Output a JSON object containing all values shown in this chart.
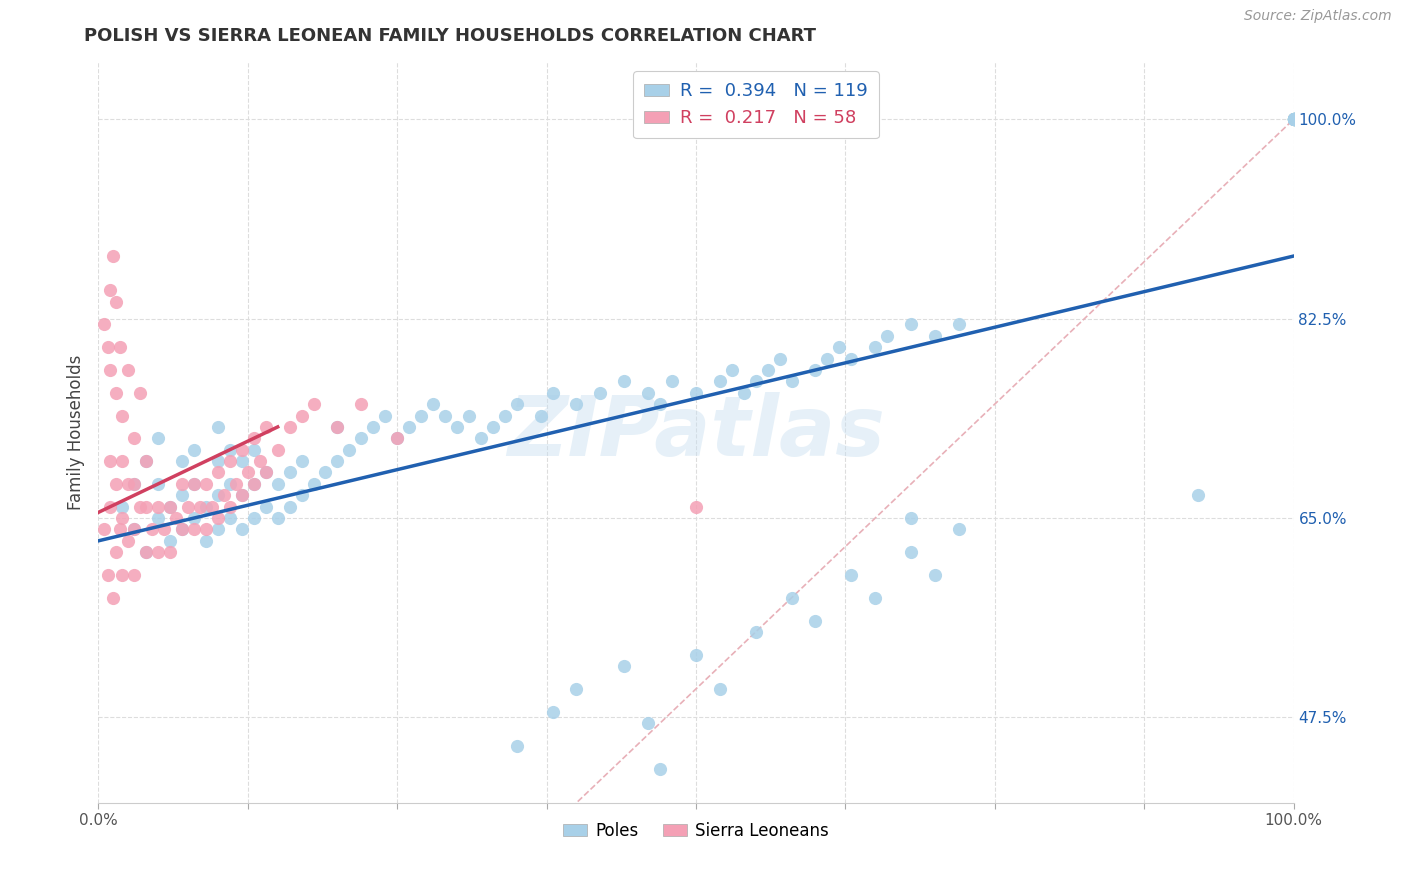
{
  "title": "POLISH VS SIERRA LEONEAN FAMILY HOUSEHOLDS CORRELATION CHART",
  "source": "Source: ZipAtlas.com",
  "ylabel": "Family Households",
  "R_poles": 0.394,
  "N_poles": 119,
  "R_sierra": 0.217,
  "N_sierra": 58,
  "color_poles": "#a8d0e8",
  "color_sierra": "#f4a0b5",
  "trendline_poles": "#2060b0",
  "trendline_sierra": "#d04060",
  "diag_color": "#e8b0b8",
  "diag_style": "--",
  "xlim": [
    0.0,
    1.0
  ],
  "ylim": [
    0.4,
    1.05
  ],
  "yticks": [
    0.475,
    0.65,
    0.825,
    1.0
  ],
  "ytick_labels": [
    "47.5%",
    "65.0%",
    "82.5%",
    "100.0%"
  ],
  "xtick_labels_show": [
    "0.0%",
    "100.0%"
  ],
  "watermark": "ZIPatlas",
  "grid_color": "#dddddd",
  "poles_trend": [
    0.63,
    0.88
  ],
  "sierra_trend_x": [
    0.0,
    0.15
  ],
  "sierra_trend_y": [
    0.655,
    0.73
  ],
  "poles_x": [
    0.02,
    0.03,
    0.03,
    0.04,
    0.04,
    0.05,
    0.05,
    0.05,
    0.06,
    0.06,
    0.07,
    0.07,
    0.07,
    0.08,
    0.08,
    0.08,
    0.09,
    0.09,
    0.1,
    0.1,
    0.1,
    0.1,
    0.11,
    0.11,
    0.11,
    0.12,
    0.12,
    0.12,
    0.13,
    0.13,
    0.13,
    0.14,
    0.14,
    0.15,
    0.15,
    0.16,
    0.16,
    0.17,
    0.17,
    0.18,
    0.19,
    0.2,
    0.2,
    0.21,
    0.22,
    0.23,
    0.24,
    0.25,
    0.26,
    0.27,
    0.28,
    0.29,
    0.3,
    0.31,
    0.32,
    0.33,
    0.34,
    0.35,
    0.37,
    0.38,
    0.4,
    0.42,
    0.44,
    0.46,
    0.47,
    0.48,
    0.5,
    0.52,
    0.53,
    0.54,
    0.55,
    0.56,
    0.57,
    0.58,
    0.6,
    0.61,
    0.62,
    0.63,
    0.65,
    0.66,
    0.68,
    0.7,
    0.72,
    0.35,
    0.38,
    0.4,
    0.44,
    0.46,
    0.47,
    0.5,
    0.52,
    0.55,
    0.58,
    0.6,
    0.63,
    0.65,
    0.68,
    0.7,
    1.0,
    1.0,
    1.0,
    1.0,
    1.0,
    1.0,
    1.0,
    1.0,
    1.0,
    1.0,
    1.0,
    1.0,
    1.0,
    1.0,
    1.0,
    1.0,
    1.0,
    1.0,
    1.0,
    0.92,
    0.68,
    0.72
  ],
  "poles_y": [
    0.66,
    0.64,
    0.68,
    0.62,
    0.7,
    0.65,
    0.68,
    0.72,
    0.63,
    0.66,
    0.64,
    0.67,
    0.7,
    0.65,
    0.68,
    0.71,
    0.63,
    0.66,
    0.64,
    0.67,
    0.7,
    0.73,
    0.65,
    0.68,
    0.71,
    0.64,
    0.67,
    0.7,
    0.65,
    0.68,
    0.71,
    0.66,
    0.69,
    0.65,
    0.68,
    0.66,
    0.69,
    0.67,
    0.7,
    0.68,
    0.69,
    0.7,
    0.73,
    0.71,
    0.72,
    0.73,
    0.74,
    0.72,
    0.73,
    0.74,
    0.75,
    0.74,
    0.73,
    0.74,
    0.72,
    0.73,
    0.74,
    0.75,
    0.74,
    0.76,
    0.75,
    0.76,
    0.77,
    0.76,
    0.75,
    0.77,
    0.76,
    0.77,
    0.78,
    0.76,
    0.77,
    0.78,
    0.79,
    0.77,
    0.78,
    0.79,
    0.8,
    0.79,
    0.8,
    0.81,
    0.82,
    0.81,
    0.82,
    0.45,
    0.48,
    0.5,
    0.52,
    0.47,
    0.43,
    0.53,
    0.5,
    0.55,
    0.58,
    0.56,
    0.6,
    0.58,
    0.62,
    0.6,
    1.0,
    1.0,
    1.0,
    1.0,
    1.0,
    1.0,
    1.0,
    1.0,
    1.0,
    1.0,
    1.0,
    1.0,
    1.0,
    1.0,
    1.0,
    1.0,
    1.0,
    1.0,
    1.0,
    0.67,
    0.65,
    0.64
  ],
  "sierra_x": [
    0.005,
    0.008,
    0.01,
    0.01,
    0.012,
    0.015,
    0.015,
    0.018,
    0.02,
    0.02,
    0.02,
    0.025,
    0.025,
    0.03,
    0.03,
    0.03,
    0.035,
    0.04,
    0.04,
    0.04,
    0.045,
    0.05,
    0.05,
    0.055,
    0.06,
    0.06,
    0.065,
    0.07,
    0.07,
    0.075,
    0.08,
    0.08,
    0.085,
    0.09,
    0.09,
    0.095,
    0.1,
    0.1,
    0.105,
    0.11,
    0.11,
    0.115,
    0.12,
    0.12,
    0.125,
    0.13,
    0.13,
    0.135,
    0.14,
    0.14,
    0.15,
    0.16,
    0.17,
    0.18,
    0.2,
    0.22,
    0.25,
    0.5
  ],
  "sierra_y": [
    0.64,
    0.6,
    0.66,
    0.7,
    0.58,
    0.62,
    0.68,
    0.64,
    0.6,
    0.65,
    0.7,
    0.63,
    0.68,
    0.6,
    0.64,
    0.68,
    0.66,
    0.62,
    0.66,
    0.7,
    0.64,
    0.62,
    0.66,
    0.64,
    0.62,
    0.66,
    0.65,
    0.64,
    0.68,
    0.66,
    0.64,
    0.68,
    0.66,
    0.64,
    0.68,
    0.66,
    0.65,
    0.69,
    0.67,
    0.66,
    0.7,
    0.68,
    0.67,
    0.71,
    0.69,
    0.68,
    0.72,
    0.7,
    0.69,
    0.73,
    0.71,
    0.73,
    0.74,
    0.75,
    0.73,
    0.75,
    0.72,
    0.66
  ],
  "sierra_high_x": [
    0.005,
    0.008,
    0.01,
    0.01,
    0.012,
    0.015,
    0.015,
    0.018,
    0.02,
    0.025,
    0.03,
    0.035
  ],
  "sierra_high_y": [
    0.82,
    0.8,
    0.85,
    0.78,
    0.88,
    0.84,
    0.76,
    0.8,
    0.74,
    0.78,
    0.72,
    0.76
  ]
}
